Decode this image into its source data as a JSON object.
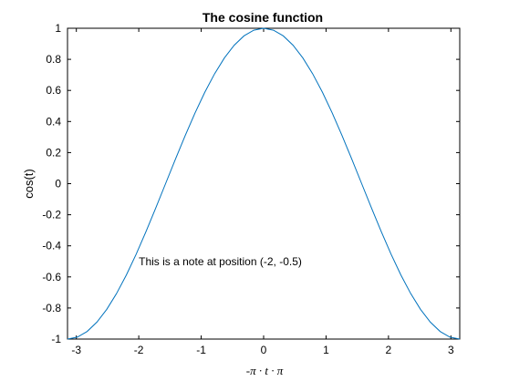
{
  "chart_data": {
    "type": "line",
    "title": "The cosine function",
    "xlabel": "-π ·   t ·   π",
    "ylabel": "cos(t)",
    "xlim": [
      -3.1416,
      3.1416
    ],
    "ylim": [
      -1,
      1
    ],
    "x_ticks": [
      -3,
      -2,
      -1,
      0,
      1,
      2,
      3
    ],
    "x_tick_labels": [
      "-3",
      "-2",
      "-1",
      "0",
      "1",
      "2",
      "3"
    ],
    "y_ticks": [
      -1,
      -0.8,
      -0.6,
      -0.4,
      -0.2,
      0,
      0.2,
      0.4,
      0.6,
      0.8,
      1
    ],
    "y_tick_labels": [
      "-1",
      "-0.8",
      "-0.6",
      "-0.4",
      "-0.2",
      "0",
      "0.2",
      "0.4",
      "0.6",
      "0.8",
      "1"
    ],
    "grid": false,
    "series": [
      {
        "function": "cos(t)",
        "color": "#0072bd",
        "x": [
          -3.1416,
          -2.9845,
          -2.8274,
          -2.6704,
          -2.5133,
          -2.3562,
          -2.1991,
          -2.042,
          -1.885,
          -1.7279,
          -1.5708,
          -1.4137,
          -1.2566,
          -1.0996,
          -0.9425,
          -0.7854,
          -0.6283,
          -0.4712,
          -0.3142,
          -0.1571,
          0,
          0.1571,
          0.3142,
          0.4712,
          0.6283,
          0.7854,
          0.9425,
          1.0996,
          1.2566,
          1.4137,
          1.5708,
          1.7279,
          1.885,
          2.042,
          2.1991,
          2.3562,
          2.5133,
          2.6704,
          2.8274,
          2.9845,
          3.1416
        ],
        "y": [
          -1,
          -0.9877,
          -0.9511,
          -0.891,
          -0.809,
          -0.7071,
          -0.5878,
          -0.454,
          -0.309,
          -0.1564,
          0,
          0.1564,
          0.309,
          0.454,
          0.5878,
          0.7071,
          0.809,
          0.891,
          0.9511,
          0.9877,
          1,
          0.9877,
          0.9511,
          0.891,
          0.809,
          0.7071,
          0.5878,
          0.454,
          0.309,
          0.1564,
          0,
          -0.1564,
          -0.309,
          -0.454,
          -0.5878,
          -0.7071,
          -0.809,
          -0.891,
          -0.9511,
          -0.9877,
          -1
        ]
      }
    ],
    "annotations": [
      {
        "text": "This is a note at position (-2, -0.5)",
        "x": -2,
        "y": -0.5
      }
    ]
  }
}
